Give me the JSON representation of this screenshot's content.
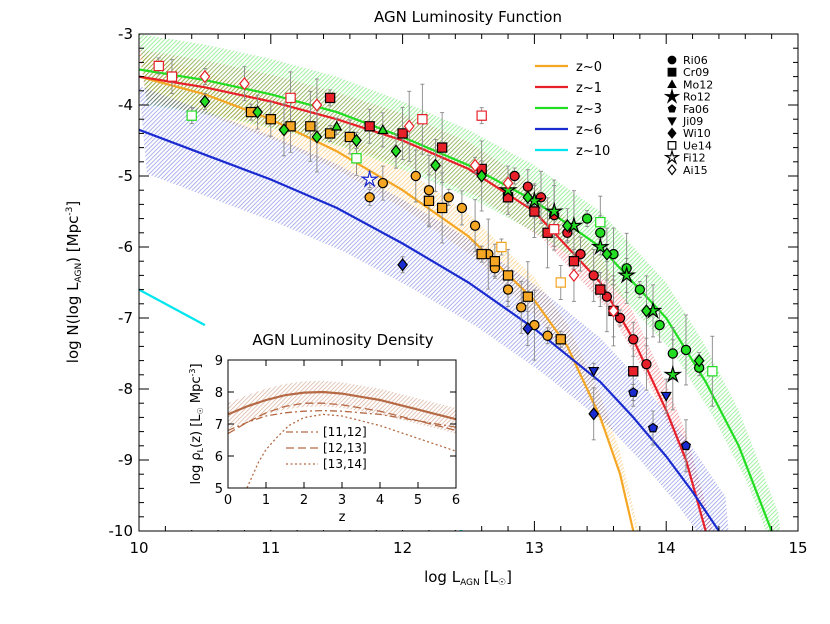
{
  "chart_data": {
    "type": "line",
    "title": "AGN Luminosity Function",
    "xlabel": "log L",
    "xlabel_sub": "AGN",
    "xlabel_unit": "[L",
    "xlabel_unit_close": "]",
    "ylabel": "log N(log L",
    "ylabel_sub": "AGN",
    "ylabel_unit": ") [Mpc",
    "ylabel_sup": "-3",
    "ylabel_close": "]",
    "xlim": [
      10,
      15
    ],
    "ylim": [
      -10,
      -3
    ],
    "x_ticks": [
      "10",
      "11",
      "12",
      "13",
      "14",
      "15"
    ],
    "y_ticks": [
      "-3",
      "-4",
      "-5",
      "-6",
      "-7",
      "-8",
      "-9",
      "-10"
    ],
    "legend_position": "top-right",
    "series": [
      {
        "name": "z~0",
        "color": "#f5a623",
        "x": [
          10.0,
          10.5,
          11.0,
          11.5,
          12.0,
          12.5,
          13.0,
          13.25,
          13.5,
          13.65,
          13.75
        ],
        "y": [
          -3.6,
          -3.85,
          -4.2,
          -4.65,
          -5.2,
          -5.85,
          -6.75,
          -7.4,
          -8.4,
          -9.2,
          -10.0
        ]
      },
      {
        "name": "z~1",
        "color": "#e8202a",
        "x": [
          10.0,
          10.5,
          11.0,
          11.5,
          12.0,
          12.5,
          13.0,
          13.5,
          13.75,
          14.0,
          14.15,
          14.3
        ],
        "y": [
          -3.6,
          -3.75,
          -3.95,
          -4.2,
          -4.5,
          -4.9,
          -5.5,
          -6.5,
          -7.3,
          -8.3,
          -9.0,
          -10.0
        ]
      },
      {
        "name": "z~3",
        "color": "#22dd22",
        "x": [
          10.0,
          10.5,
          11.0,
          11.5,
          12.0,
          12.5,
          13.0,
          13.5,
          14.0,
          14.3,
          14.55,
          14.8
        ],
        "y": [
          -3.5,
          -3.65,
          -3.85,
          -4.1,
          -4.45,
          -4.85,
          -5.35,
          -6.0,
          -7.0,
          -7.9,
          -8.8,
          -10.0
        ]
      },
      {
        "name": "z~6",
        "color": "#1a2bd0",
        "x": [
          10.0,
          10.5,
          11.0,
          11.5,
          12.0,
          12.5,
          13.0,
          13.5,
          13.75,
          14.0,
          14.2,
          14.4
        ],
        "y": [
          -4.35,
          -4.7,
          -5.05,
          -5.45,
          -5.95,
          -6.5,
          -7.15,
          -7.9,
          -8.4,
          -8.95,
          -9.45,
          -10.0
        ]
      },
      {
        "name": "z~10",
        "color": "#00e5ee",
        "x": [
          10.0,
          10.5
        ],
        "y": [
          -6.6,
          -7.1
        ],
        "x2": [
          12.35,
          12.45
        ],
        "y2": [
          -9.8,
          -10.0
        ]
      }
    ],
    "points": [
      {
        "survey": "Ri06",
        "marker": "circle",
        "filled": true,
        "color": "#f5a623",
        "x": [
          11.75,
          11.85,
          12.1,
          12.2,
          12.35,
          12.45,
          12.55,
          12.65,
          12.7,
          12.8,
          12.9,
          13.0,
          13.1
        ],
        "y": [
          -5.3,
          -5.1,
          -5.0,
          -5.2,
          -5.3,
          -5.45,
          -5.7,
          -6.1,
          -6.3,
          -6.6,
          -6.85,
          -7.1,
          -7.25
        ]
      },
      {
        "survey": "Ri06",
        "marker": "circle",
        "filled": true,
        "color": "#e8202a",
        "x": [
          12.85,
          12.95,
          13.05,
          13.15,
          13.25,
          13.35,
          13.45,
          13.55,
          13.65,
          13.75,
          13.85
        ],
        "y": [
          -5.0,
          -5.15,
          -5.3,
          -5.55,
          -5.8,
          -6.1,
          -6.4,
          -6.7,
          -7.0,
          -7.3,
          -7.65
        ]
      },
      {
        "survey": "Ri06",
        "marker": "circle",
        "filled": true,
        "color": "#22dd22",
        "x": [
          13.4,
          13.5,
          13.6,
          13.7,
          13.8,
          13.95,
          14.05,
          14.15,
          14.25
        ],
        "y": [
          -5.6,
          -5.8,
          -6.1,
          -6.3,
          -6.6,
          -7.1,
          -7.5,
          -7.45,
          -7.7
        ]
      },
      {
        "survey": "Cr09",
        "marker": "square",
        "filled": true,
        "color": "#f5a623",
        "x": [
          10.85,
          11.0,
          11.15,
          11.3,
          11.45,
          11.6,
          12.2,
          12.3,
          12.6,
          12.7,
          12.8,
          12.95,
          13.2
        ],
        "y": [
          -4.1,
          -4.2,
          -4.3,
          -4.3,
          -4.4,
          -4.45,
          -5.35,
          -5.45,
          -6.1,
          -6.2,
          -6.4,
          -6.7,
          -7.3
        ]
      },
      {
        "survey": "Cr09",
        "marker": "square",
        "filled": true,
        "color": "#e8202a",
        "x": [
          11.45,
          11.75,
          12.0,
          12.3,
          12.6,
          12.8,
          13.0,
          13.1,
          13.3,
          13.5,
          13.6,
          13.75
        ],
        "y": [
          -3.9,
          -4.3,
          -4.4,
          -4.6,
          -4.9,
          -5.3,
          -5.5,
          -5.8,
          -6.2,
          -6.6,
          -6.9,
          -7.75
        ]
      },
      {
        "survey": "Mo12",
        "marker": "triangle-up",
        "filled": true,
        "color": "#22dd22",
        "x": [
          11.5,
          11.85
        ],
        "y": [
          -4.3,
          -4.35
        ]
      },
      {
        "survey": "Ro12",
        "marker": "star",
        "filled": true,
        "color": "#22dd22",
        "x": [
          12.8,
          13.0,
          13.15,
          13.3,
          13.5,
          13.7,
          13.9,
          14.05
        ],
        "y": [
          -5.2,
          -5.35,
          -5.5,
          -5.7,
          -6.0,
          -6.4,
          -6.9,
          -7.8
        ]
      },
      {
        "survey": "Fa06",
        "marker": "pentagon",
        "filled": true,
        "color": "#1a2bd0",
        "x": [
          13.75,
          13.9,
          14.15
        ],
        "y": [
          -8.05,
          -8.55,
          -8.8
        ]
      },
      {
        "survey": "Ji09",
        "marker": "triangle-down",
        "filled": true,
        "color": "#1a2bd0",
        "x": [
          13.45,
          14.0
        ],
        "y": [
          -7.75,
          -8.1
        ]
      },
      {
        "survey": "Wi10",
        "marker": "diamond",
        "filled": true,
        "color": "#1a2bd0",
        "x": [
          12.0,
          12.95,
          13.45
        ],
        "y": [
          -6.25,
          -7.15,
          -8.35
        ]
      },
      {
        "survey": "Ue14",
        "marker": "square",
        "filled": false,
        "color": "#e8202a",
        "x": [
          10.15,
          10.25,
          11.15,
          12.15,
          12.6,
          13.15
        ],
        "y": [
          -3.45,
          -3.6,
          -3.9,
          -4.2,
          -4.15,
          -5.75
        ]
      },
      {
        "survey": "Ue14",
        "marker": "square",
        "filled": false,
        "color": "#f5a623",
        "x": [
          12.75,
          13.2
        ],
        "y": [
          -6.0,
          -6.5
        ]
      },
      {
        "survey": "Ue14",
        "marker": "square",
        "filled": false,
        "color": "#22dd22",
        "x": [
          10.4,
          11.65,
          13.5,
          14.35
        ],
        "y": [
          -4.15,
          -4.75,
          -5.65,
          -7.75
        ]
      },
      {
        "survey": "Fi12",
        "marker": "star",
        "filled": false,
        "color": "#1a2bd0",
        "x": [
          11.75
        ],
        "y": [
          -5.05
        ]
      },
      {
        "survey": "Ai15",
        "marker": "diamond",
        "filled": false,
        "color": "#e8202a",
        "x": [
          10.5,
          10.8,
          11.35,
          12.05,
          12.55,
          12.8,
          13.3,
          13.6
        ],
        "y": [
          -3.6,
          -3.7,
          -4.0,
          -4.3,
          -4.85,
          -5.1,
          -6.4,
          -6.9
        ]
      },
      {
        "survey": "Ai15",
        "marker": "diamond",
        "filled": true,
        "color": "#22dd22",
        "x": [
          10.5,
          10.9,
          11.1,
          11.35,
          11.65,
          11.95,
          12.25,
          12.6,
          12.95,
          13.25,
          13.55,
          13.85,
          14.25
        ],
        "y": [
          -3.95,
          -4.1,
          -4.35,
          -4.45,
          -4.5,
          -4.65,
          -4.85,
          -5.0,
          -5.3,
          -5.7,
          -6.1,
          -6.9,
          -7.6
        ]
      }
    ],
    "legend_markers": [
      {
        "label": "Ri06",
        "marker": "circle",
        "filled": true
      },
      {
        "label": "Cr09",
        "marker": "square",
        "filled": true
      },
      {
        "label": "Mo12",
        "marker": "triangle-up",
        "filled": true
      },
      {
        "label": "Ro12",
        "marker": "star",
        "filled": true
      },
      {
        "label": "Fa06",
        "marker": "pentagon",
        "filled": true
      },
      {
        "label": "Ji09",
        "marker": "triangle-down",
        "filled": true
      },
      {
        "label": "Wi10",
        "marker": "diamond",
        "filled": true
      },
      {
        "label": "Ue14",
        "marker": "square",
        "filled": false
      },
      {
        "label": "Fi12",
        "marker": "star",
        "filled": false
      },
      {
        "label": "Ai15",
        "marker": "diamond",
        "filled": false
      }
    ],
    "inset": {
      "title": "AGN Luminosity Density",
      "xlabel": "z",
      "ylabel": "log ρ",
      "ylabel_sub": "L",
      "ylabel_rest": "(z) [L",
      "ylabel_unit": " Mpc",
      "ylabel_sup": "-3",
      "ylabel_close": "]",
      "xlim": [
        0,
        6
      ],
      "ylim": [
        5,
        9
      ],
      "x_ticks": [
        "0",
        "1",
        "2",
        "3",
        "4",
        "5",
        "6"
      ],
      "y_ticks": [
        "5",
        "6",
        "7",
        "8",
        "9"
      ],
      "color": "#b56a45",
      "total": {
        "x": [
          0,
          0.5,
          1,
          1.5,
          2,
          2.5,
          3,
          3.5,
          4,
          4.5,
          5,
          5.5,
          6
        ],
        "y": [
          7.3,
          7.55,
          7.75,
          7.9,
          7.98,
          8.0,
          7.95,
          7.85,
          7.75,
          7.6,
          7.45,
          7.3,
          7.15
        ]
      },
      "series": [
        {
          "name": "[11,12]",
          "style": "dash-dot",
          "x": [
            0,
            0.5,
            1,
            1.5,
            2,
            2.5,
            3,
            3.5,
            4,
            4.5,
            5,
            5.5,
            6
          ],
          "y": [
            6.8,
            7.05,
            7.25,
            7.35,
            7.4,
            7.42,
            7.4,
            7.35,
            7.3,
            7.2,
            7.1,
            7.0,
            6.9
          ]
        },
        {
          "name": "[12,13]",
          "style": "dashed",
          "x": [
            0,
            0.5,
            1,
            1.5,
            2,
            2.5,
            3,
            3.5,
            4,
            4.5,
            5,
            5.5,
            6
          ],
          "y": [
            6.7,
            7.05,
            7.35,
            7.55,
            7.65,
            7.65,
            7.6,
            7.5,
            7.4,
            7.25,
            7.1,
            6.95,
            6.8
          ]
        },
        {
          "name": "[13,14]",
          "style": "dotted",
          "x": [
            0.5,
            0.8,
            1,
            1.3,
            1.6,
            2,
            2.5,
            3,
            3.5,
            4,
            4.5,
            5,
            5.5,
            6
          ],
          "y": [
            5.0,
            5.8,
            6.2,
            6.6,
            6.95,
            7.2,
            7.3,
            7.25,
            7.1,
            6.95,
            6.75,
            6.55,
            6.35,
            6.15
          ]
        }
      ]
    }
  }
}
